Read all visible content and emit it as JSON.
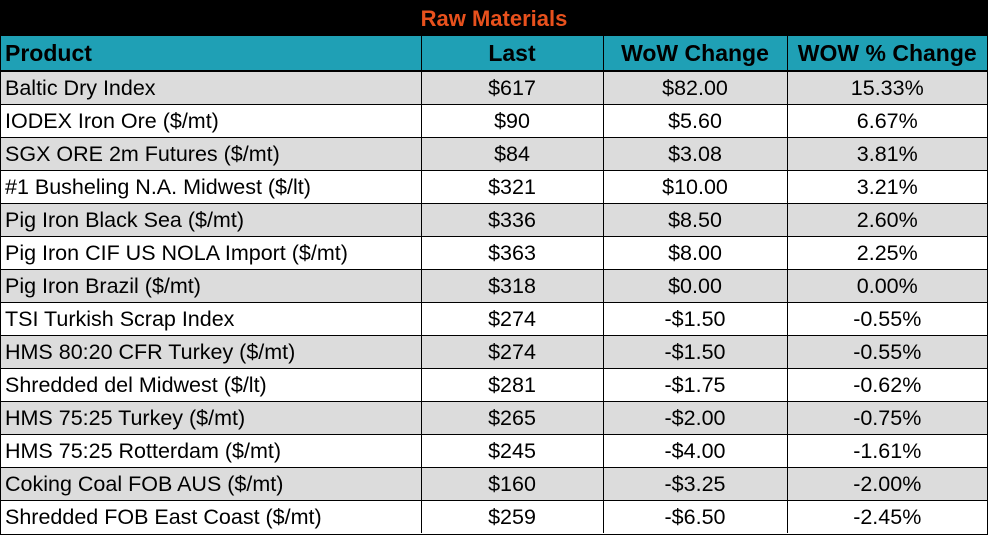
{
  "title": "Raw Materials",
  "colors": {
    "title_bg": "#000000",
    "title_text": "#e8511d",
    "header_bg": "#1fa0b5",
    "row_shade": "#dcdcdc",
    "row_plain": "#ffffff"
  },
  "headers": {
    "product": "Product",
    "last": "Last",
    "wow_change": "WoW Change",
    "wow_pct_change": "WOW % Change"
  },
  "rows": [
    {
      "product": "Baltic Dry Index",
      "last": "$617",
      "wow_change": "$82.00",
      "wow_pct_change": "15.33%"
    },
    {
      "product": "IODEX  Iron Ore ($/mt)",
      "last": "$90",
      "wow_change": "$5.60",
      "wow_pct_change": "6.67%"
    },
    {
      "product": "SGX ORE 2m Futures ($/mt)",
      "last": "$84",
      "wow_change": "$3.08",
      "wow_pct_change": "3.81%"
    },
    {
      "product": "#1 Busheling N.A. Midwest ($/lt)",
      "last": "$321",
      "wow_change": "$10.00",
      "wow_pct_change": "3.21%"
    },
    {
      "product": "Pig Iron Black Sea ($/mt)",
      "last": "$336",
      "wow_change": "$8.50",
      "wow_pct_change": "2.60%"
    },
    {
      "product": "Pig Iron CIF US NOLA Import ($/mt)",
      "last": "$363",
      "wow_change": "$8.00",
      "wow_pct_change": "2.25%"
    },
    {
      "product": "Pig Iron Brazil ($/mt)",
      "last": "$318",
      "wow_change": "$0.00",
      "wow_pct_change": "0.00%"
    },
    {
      "product": "TSI Turkish Scrap Index",
      "last": "$274",
      "wow_change": "-$1.50",
      "wow_pct_change": "-0.55%"
    },
    {
      "product": "HMS 80:20 CFR Turkey ($/mt)",
      "last": "$274",
      "wow_change": "-$1.50",
      "wow_pct_change": "-0.55%"
    },
    {
      "product": "Shredded del  Midwest ($/lt)",
      "last": "$281",
      "wow_change": "-$1.75",
      "wow_pct_change": "-0.62%"
    },
    {
      "product": "HMS 75:25 Turkey ($/mt)",
      "last": "$265",
      "wow_change": "-$2.00",
      "wow_pct_change": "-0.75%"
    },
    {
      "product": "HMS 75:25 Rotterdam ($/mt)",
      "last": "$245",
      "wow_change": "-$4.00",
      "wow_pct_change": "-1.61%"
    },
    {
      "product": "Coking Coal FOB AUS ($/mt)",
      "last": "$160",
      "wow_change": "-$3.25",
      "wow_pct_change": "-2.00%"
    },
    {
      "product": "Shredded FOB East Coast ($/mt)",
      "last": "$259",
      "wow_change": "-$6.50",
      "wow_pct_change": "-2.45%"
    }
  ]
}
